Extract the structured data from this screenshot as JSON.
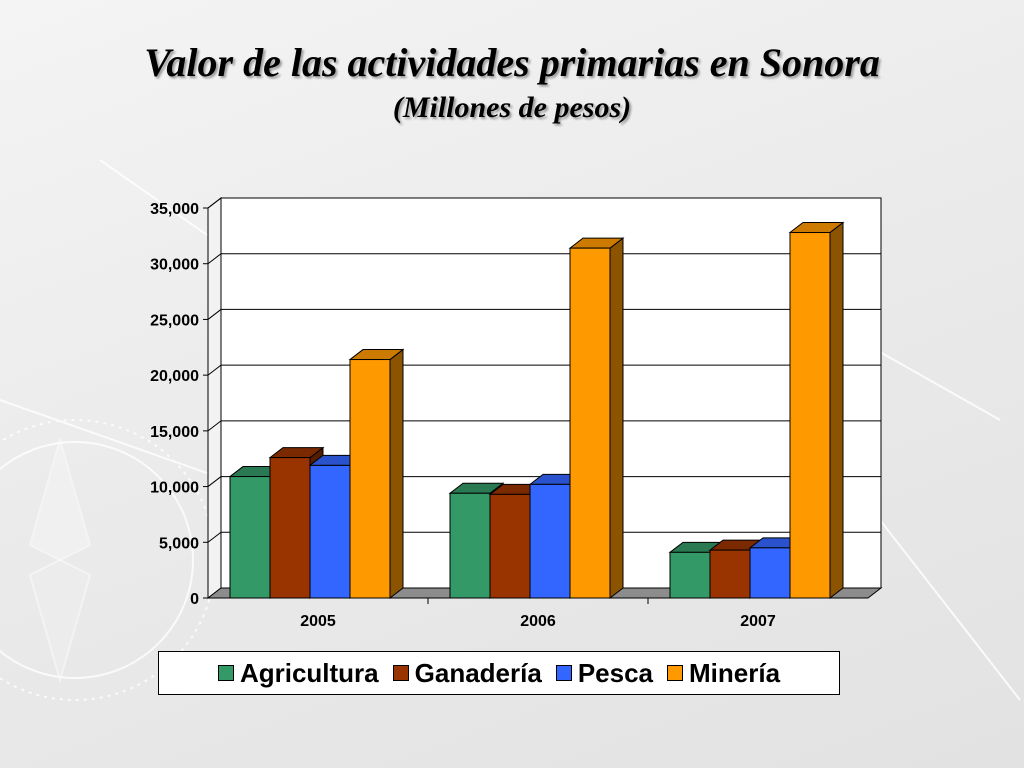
{
  "header": {
    "title": "Valor de las actividades primarias en Sonora",
    "subtitle": "(Millones de pesos)"
  },
  "colors": {
    "agricultura": "#339966",
    "ganaderia": "#993300",
    "pesca": "#3366FF",
    "mineria": "#FF9900"
  },
  "chart_data": {
    "type": "bar",
    "categories": [
      "2005",
      "2006",
      "2007"
    ],
    "series": [
      {
        "name": "Agricultura",
        "values": [
          10900,
          9400,
          4100
        ]
      },
      {
        "name": "Ganadería",
        "values": [
          12600,
          9300,
          4300
        ]
      },
      {
        "name": "Pesca",
        "values": [
          11900,
          10200,
          4500
        ]
      },
      {
        "name": "Minería",
        "values": [
          21400,
          31400,
          32800
        ]
      }
    ],
    "yticks": [
      "0",
      "5,000",
      "10,000",
      "15,000",
      "20,000",
      "25,000",
      "30,000",
      "35,000"
    ],
    "ylim": [
      0,
      35000
    ],
    "grid": true,
    "three_d": true,
    "legend_position": "bottom"
  }
}
